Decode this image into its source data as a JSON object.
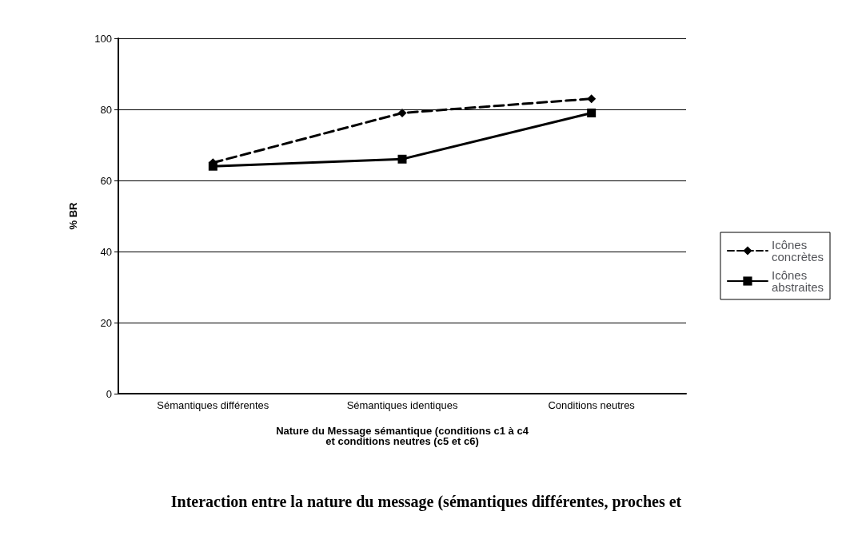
{
  "chart_data": {
    "type": "line",
    "categories": [
      "Sémantiques différentes",
      "Sémantiques identiques",
      "Conditions neutres"
    ],
    "series": [
      {
        "name": "Icônes concrètes",
        "color": "#000000",
        "values": [
          65,
          79,
          83
        ],
        "marker": "diamond",
        "line_style": "dashed"
      },
      {
        "name": "Icônes abstraites",
        "color": "#000000",
        "values": [
          64,
          66,
          79
        ],
        "marker": "square",
        "line_style": "solid"
      }
    ],
    "xlabel": "Nature du Message sémantique (conditions c1 à c4\net conditions neutres (c5 et c6)",
    "ylabel": "% BR",
    "ylim": [
      0,
      100
    ],
    "yticks": [
      0,
      20,
      40,
      60,
      80,
      100
    ],
    "grid": "y",
    "legend": "right",
    "annotations": [
      "Interaction entre la nature du message (sémantiques différentes, proches et"
    ]
  }
}
